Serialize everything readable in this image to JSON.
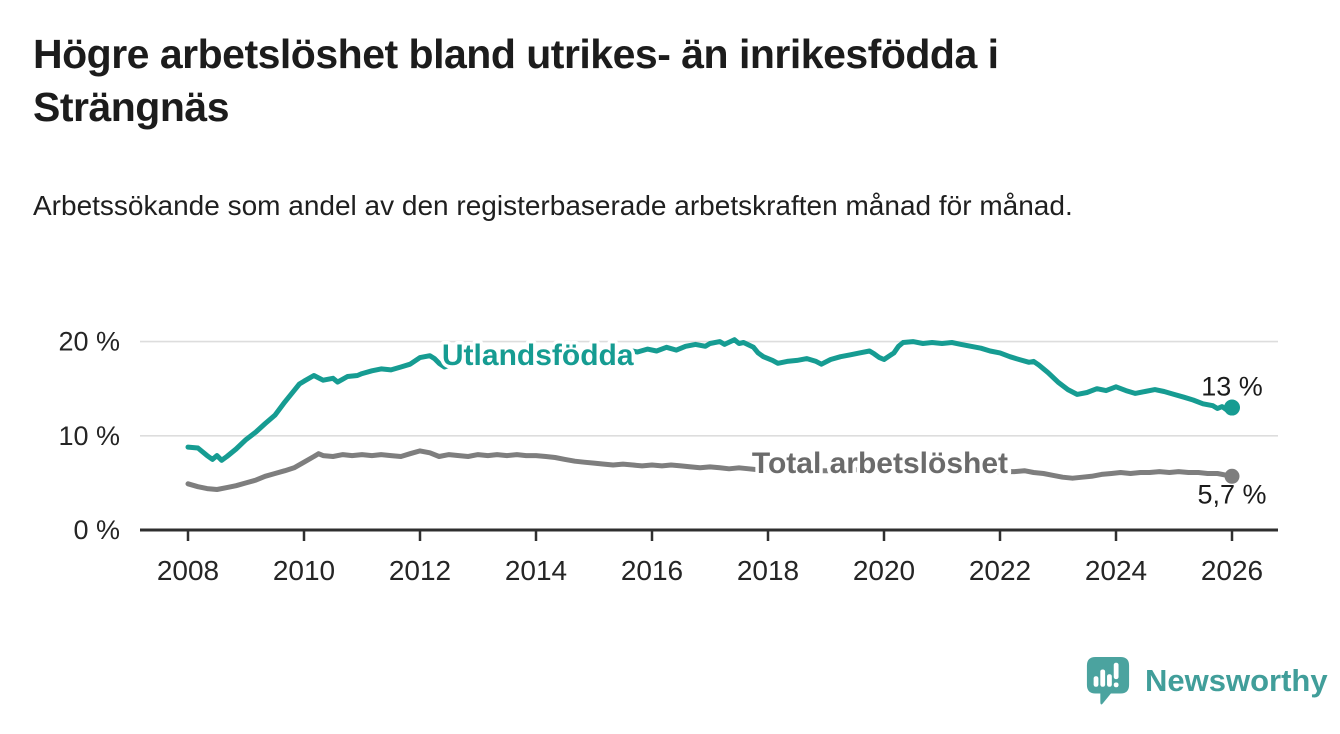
{
  "header": {
    "title": "Högre arbetslöshet bland utrikes- än inrikesfödda i Strängnäs",
    "subtitle": "Arbetssökande som andel av den registerbaserade arbetskraften månad för månad."
  },
  "branding": {
    "logo_text": "Newsworthy",
    "logo_icon": "speech-bubble-bar-chart-icon",
    "logo_color": "#4ba39f"
  },
  "chart_data": {
    "type": "line",
    "title": "Högre arbetslöshet bland utrikes- än inrikesfödda i Strängnäs",
    "subtitle": "Arbetssökande som andel av den registerbaserade arbetskraften månad för månad.",
    "xlabel": "",
    "ylabel": "",
    "grid": "horizontal",
    "legend_position": "inline-labels",
    "x_axis": {
      "min": 2007.15,
      "max": 2026.8,
      "ticks": [
        {
          "value": 2008,
          "label": "2008"
        },
        {
          "value": 2010,
          "label": "2010"
        },
        {
          "value": 2012,
          "label": "2012"
        },
        {
          "value": 2014,
          "label": "2014"
        },
        {
          "value": 2016,
          "label": "2016"
        },
        {
          "value": 2018,
          "label": "2018"
        },
        {
          "value": 2020,
          "label": "2020"
        },
        {
          "value": 2022,
          "label": "2022"
        },
        {
          "value": 2024,
          "label": "2024"
        },
        {
          "value": 2026,
          "label": "2026"
        }
      ]
    },
    "y_axis": {
      "min": 0,
      "max": 21,
      "ticks": [
        {
          "value": 0,
          "label": "0 %"
        },
        {
          "value": 10,
          "label": "10 %"
        },
        {
          "value": 20,
          "label": "20 %"
        }
      ]
    },
    "colors": {
      "gridline": "#dddddd",
      "axis": "#2f2f2f",
      "tick_label": "#252525",
      "value_label": "#1c1c1c"
    },
    "series": [
      {
        "name": "Utlandsfödda",
        "color": "#169c92",
        "label": {
          "text": "Utlandsfödda",
          "x": 2014.03,
          "y": 18.6
        },
        "end_label": {
          "text": "13 %",
          "dx": 0,
          "dy": -21
        },
        "end_dot_radius": 8,
        "points": [
          [
            2008.0,
            8.8
          ],
          [
            2008.17,
            8.7
          ],
          [
            2008.33,
            7.9
          ],
          [
            2008.42,
            7.5
          ],
          [
            2008.5,
            7.9
          ],
          [
            2008.58,
            7.4
          ],
          [
            2008.67,
            7.8
          ],
          [
            2008.83,
            8.6
          ],
          [
            2009.0,
            9.6
          ],
          [
            2009.17,
            10.4
          ],
          [
            2009.33,
            11.3
          ],
          [
            2009.5,
            12.2
          ],
          [
            2009.67,
            13.6
          ],
          [
            2009.83,
            14.8
          ],
          [
            2009.92,
            15.5
          ],
          [
            2010.0,
            15.8
          ],
          [
            2010.17,
            16.4
          ],
          [
            2010.33,
            15.9
          ],
          [
            2010.5,
            16.1
          ],
          [
            2010.58,
            15.7
          ],
          [
            2010.75,
            16.3
          ],
          [
            2010.92,
            16.4
          ],
          [
            2011.0,
            16.6
          ],
          [
            2011.17,
            16.9
          ],
          [
            2011.33,
            17.1
          ],
          [
            2011.5,
            17.0
          ],
          [
            2011.67,
            17.3
          ],
          [
            2011.83,
            17.6
          ],
          [
            2012.0,
            18.3
          ],
          [
            2012.17,
            18.5
          ],
          [
            2012.25,
            18.2
          ],
          [
            2012.33,
            17.7
          ],
          [
            2012.42,
            17.3
          ],
          [
            2012.58,
            17.7
          ],
          [
            2012.75,
            17.9
          ],
          [
            2012.92,
            17.7
          ],
          [
            2013.08,
            18.1
          ],
          [
            2013.25,
            17.9
          ],
          [
            2013.42,
            18.3
          ],
          [
            2013.58,
            18.1
          ],
          [
            2013.75,
            18.4
          ],
          [
            2013.92,
            18.2
          ],
          [
            2014.08,
            18.5
          ],
          [
            2014.25,
            18.3
          ],
          [
            2014.42,
            18.6
          ],
          [
            2014.58,
            18.4
          ],
          [
            2014.75,
            18.7
          ],
          [
            2014.92,
            18.5
          ],
          [
            2015.08,
            18.8
          ],
          [
            2015.25,
            19.0
          ],
          [
            2015.42,
            18.7
          ],
          [
            2015.58,
            19.1
          ],
          [
            2015.75,
            18.9
          ],
          [
            2015.92,
            19.2
          ],
          [
            2016.08,
            19.0
          ],
          [
            2016.25,
            19.4
          ],
          [
            2016.42,
            19.1
          ],
          [
            2016.58,
            19.5
          ],
          [
            2016.75,
            19.7
          ],
          [
            2016.92,
            19.5
          ],
          [
            2017.0,
            19.8
          ],
          [
            2017.17,
            20.0
          ],
          [
            2017.25,
            19.7
          ],
          [
            2017.42,
            20.2
          ],
          [
            2017.5,
            19.8
          ],
          [
            2017.58,
            19.9
          ],
          [
            2017.75,
            19.4
          ],
          [
            2017.83,
            18.8
          ],
          [
            2017.92,
            18.4
          ],
          [
            2018.08,
            18.0
          ],
          [
            2018.17,
            17.7
          ],
          [
            2018.33,
            17.9
          ],
          [
            2018.5,
            18.0
          ],
          [
            2018.67,
            18.2
          ],
          [
            2018.83,
            17.9
          ],
          [
            2018.92,
            17.6
          ],
          [
            2019.08,
            18.1
          ],
          [
            2019.25,
            18.4
          ],
          [
            2019.42,
            18.6
          ],
          [
            2019.58,
            18.8
          ],
          [
            2019.75,
            19.0
          ],
          [
            2019.83,
            18.7
          ],
          [
            2019.92,
            18.3
          ],
          [
            2020.0,
            18.1
          ],
          [
            2020.17,
            18.8
          ],
          [
            2020.25,
            19.5
          ],
          [
            2020.33,
            19.9
          ],
          [
            2020.5,
            20.0
          ],
          [
            2020.67,
            19.8
          ],
          [
            2020.83,
            19.9
          ],
          [
            2021.0,
            19.8
          ],
          [
            2021.17,
            19.9
          ],
          [
            2021.33,
            19.7
          ],
          [
            2021.5,
            19.5
          ],
          [
            2021.67,
            19.3
          ],
          [
            2021.83,
            19.0
          ],
          [
            2022.0,
            18.8
          ],
          [
            2022.17,
            18.4
          ],
          [
            2022.33,
            18.1
          ],
          [
            2022.5,
            17.8
          ],
          [
            2022.58,
            17.9
          ],
          [
            2022.67,
            17.5
          ],
          [
            2022.83,
            16.7
          ],
          [
            2023.0,
            15.7
          ],
          [
            2023.17,
            14.9
          ],
          [
            2023.33,
            14.4
          ],
          [
            2023.5,
            14.6
          ],
          [
            2023.67,
            15.0
          ],
          [
            2023.83,
            14.8
          ],
          [
            2024.0,
            15.2
          ],
          [
            2024.17,
            14.8
          ],
          [
            2024.33,
            14.5
          ],
          [
            2024.5,
            14.7
          ],
          [
            2024.67,
            14.9
          ],
          [
            2024.83,
            14.7
          ],
          [
            2025.0,
            14.4
          ],
          [
            2025.17,
            14.1
          ],
          [
            2025.33,
            13.8
          ],
          [
            2025.5,
            13.4
          ],
          [
            2025.67,
            13.2
          ],
          [
            2025.75,
            12.9
          ],
          [
            2025.83,
            13.1
          ],
          [
            2025.92,
            12.7
          ],
          [
            2026.0,
            13.0
          ]
        ]
      },
      {
        "name": "Total arbetslöshet",
        "color": "#7e7e7e",
        "label_color": "#6b6b6b",
        "label": {
          "text": "Total arbetslöshet",
          "x": 2019.93,
          "y": 7.1
        },
        "end_label": {
          "text": "5,7 %",
          "dx": 0,
          "dy": 18
        },
        "end_dot_radius": 7.5,
        "points": [
          [
            2008.0,
            4.9
          ],
          [
            2008.17,
            4.6
          ],
          [
            2008.33,
            4.4
          ],
          [
            2008.5,
            4.3
          ],
          [
            2008.67,
            4.5
          ],
          [
            2008.83,
            4.7
          ],
          [
            2009.0,
            5.0
          ],
          [
            2009.17,
            5.3
          ],
          [
            2009.33,
            5.7
          ],
          [
            2009.5,
            6.0
          ],
          [
            2009.67,
            6.3
          ],
          [
            2009.83,
            6.6
          ],
          [
            2010.0,
            7.2
          ],
          [
            2010.17,
            7.8
          ],
          [
            2010.25,
            8.1
          ],
          [
            2010.33,
            7.9
          ],
          [
            2010.5,
            7.8
          ],
          [
            2010.67,
            8.0
          ],
          [
            2010.83,
            7.9
          ],
          [
            2011.0,
            8.0
          ],
          [
            2011.17,
            7.9
          ],
          [
            2011.33,
            8.0
          ],
          [
            2011.5,
            7.9
          ],
          [
            2011.67,
            7.8
          ],
          [
            2011.83,
            8.1
          ],
          [
            2012.0,
            8.4
          ],
          [
            2012.17,
            8.2
          ],
          [
            2012.33,
            7.8
          ],
          [
            2012.5,
            8.0
          ],
          [
            2012.67,
            7.9
          ],
          [
            2012.83,
            7.8
          ],
          [
            2013.0,
            8.0
          ],
          [
            2013.17,
            7.9
          ],
          [
            2013.33,
            8.0
          ],
          [
            2013.5,
            7.9
          ],
          [
            2013.67,
            8.0
          ],
          [
            2013.83,
            7.9
          ],
          [
            2014.0,
            7.9
          ],
          [
            2014.17,
            7.8
          ],
          [
            2014.33,
            7.7
          ],
          [
            2014.5,
            7.5
          ],
          [
            2014.67,
            7.3
          ],
          [
            2014.83,
            7.2
          ],
          [
            2015.0,
            7.1
          ],
          [
            2015.17,
            7.0
          ],
          [
            2015.33,
            6.9
          ],
          [
            2015.5,
            7.0
          ],
          [
            2015.67,
            6.9
          ],
          [
            2015.83,
            6.8
          ],
          [
            2016.0,
            6.9
          ],
          [
            2016.17,
            6.8
          ],
          [
            2016.33,
            6.9
          ],
          [
            2016.5,
            6.8
          ],
          [
            2016.67,
            6.7
          ],
          [
            2016.83,
            6.6
          ],
          [
            2017.0,
            6.7
          ],
          [
            2017.17,
            6.6
          ],
          [
            2017.33,
            6.5
          ],
          [
            2017.5,
            6.6
          ],
          [
            2017.67,
            6.5
          ],
          [
            2017.83,
            6.4
          ],
          [
            2018.0,
            6.5
          ],
          [
            2018.25,
            6.4
          ],
          [
            2018.5,
            6.4
          ],
          [
            2018.75,
            6.3
          ],
          [
            2019.0,
            6.3
          ],
          [
            2019.25,
            6.3
          ],
          [
            2019.5,
            6.4
          ],
          [
            2019.75,
            6.4
          ],
          [
            2020.0,
            6.4
          ],
          [
            2020.25,
            6.5
          ],
          [
            2020.5,
            6.5
          ],
          [
            2020.75,
            6.4
          ],
          [
            2021.0,
            6.4
          ],
          [
            2021.25,
            6.3
          ],
          [
            2021.5,
            6.3
          ],
          [
            2021.75,
            6.2
          ],
          [
            2022.0,
            6.2
          ],
          [
            2022.25,
            6.2
          ],
          [
            2022.42,
            6.3
          ],
          [
            2022.58,
            6.1
          ],
          [
            2022.75,
            6.0
          ],
          [
            2022.92,
            5.8
          ],
          [
            2023.08,
            5.6
          ],
          [
            2023.25,
            5.5
          ],
          [
            2023.42,
            5.6
          ],
          [
            2023.58,
            5.7
          ],
          [
            2023.75,
            5.9
          ],
          [
            2023.92,
            6.0
          ],
          [
            2024.08,
            6.1
          ],
          [
            2024.25,
            6.0
          ],
          [
            2024.42,
            6.1
          ],
          [
            2024.58,
            6.1
          ],
          [
            2024.75,
            6.2
          ],
          [
            2024.92,
            6.1
          ],
          [
            2025.08,
            6.2
          ],
          [
            2025.25,
            6.1
          ],
          [
            2025.42,
            6.1
          ],
          [
            2025.58,
            6.0
          ],
          [
            2025.75,
            6.0
          ],
          [
            2025.92,
            5.8
          ],
          [
            2026.0,
            5.7
          ]
        ]
      }
    ]
  }
}
